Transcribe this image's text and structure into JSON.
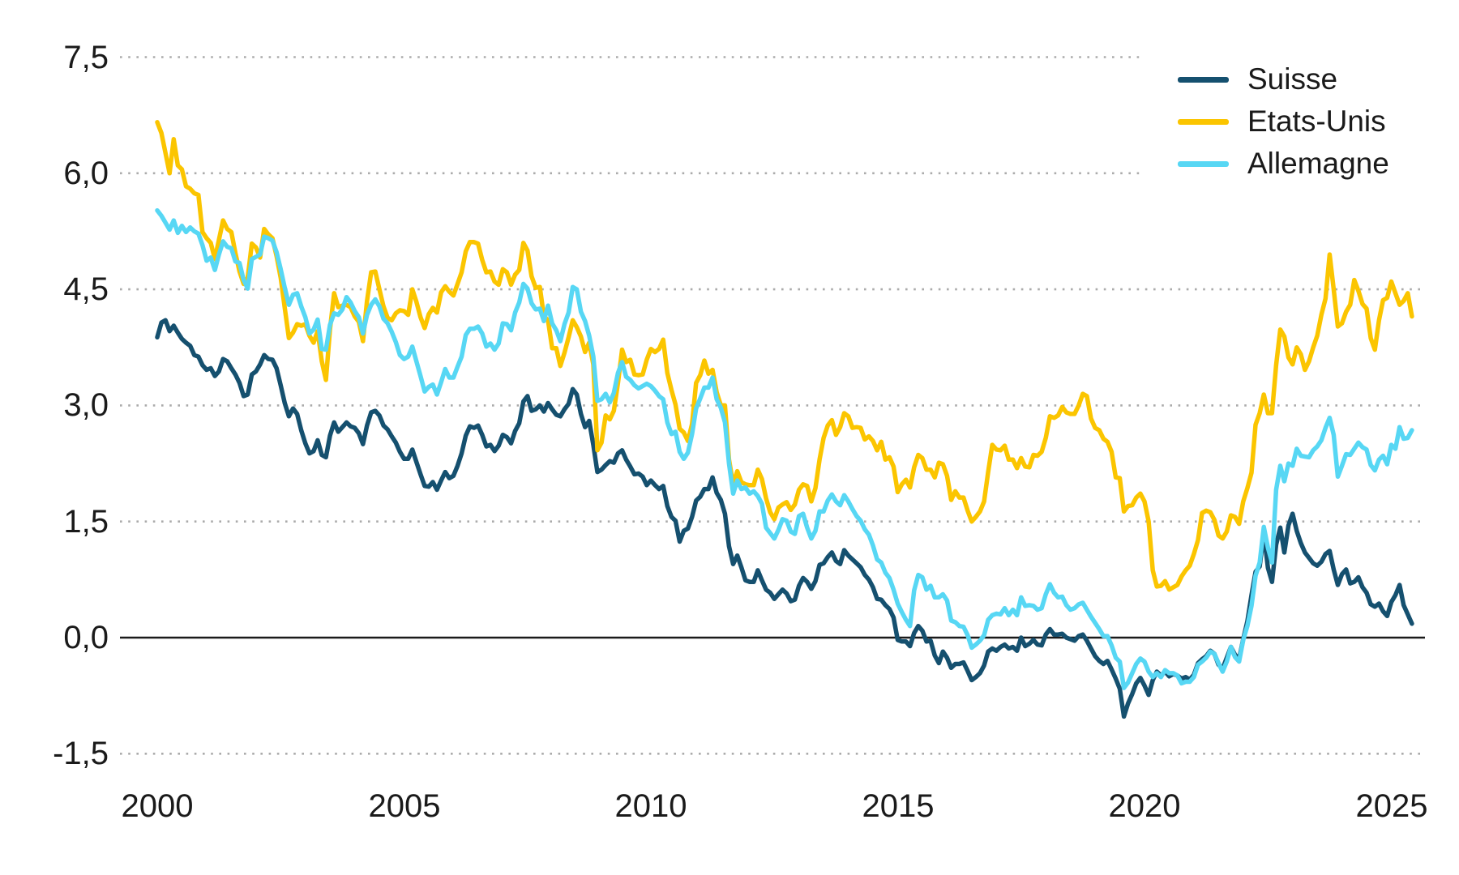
{
  "chart_data": {
    "type": "line",
    "title": "",
    "xlabel": "",
    "ylabel": "",
    "x_start_year": 2000,
    "x_interval": "monthly",
    "x_end": "2025-06",
    "x_tick_years": [
      "2000",
      "2005",
      "2010",
      "2015",
      "2020",
      "2025"
    ],
    "y_ticks": [
      {
        "value": 7.5,
        "label": "7,5"
      },
      {
        "value": 6.0,
        "label": "6,0"
      },
      {
        "value": 4.5,
        "label": "4,5"
      },
      {
        "value": 3.0,
        "label": "3,0"
      },
      {
        "value": 1.5,
        "label": "1,5"
      },
      {
        "value": 0.0,
        "label": "0,0"
      },
      {
        "value": -1.5,
        "label": "-1,5"
      }
    ],
    "ylim": [
      -1.5,
      7.5
    ],
    "grid": "dotted-horizontal",
    "zero_line": true,
    "legend_position": "top-right",
    "colors": {
      "grid_dot": "#ababab",
      "zero_line": "#1a1a1a",
      "text": "#1a1a1a",
      "background": "#ffffff"
    },
    "series": [
      {
        "name": "Suisse",
        "color": "#15506F",
        "values": [
          3.88,
          4.07,
          4.1,
          3.96,
          4.03,
          3.94,
          3.86,
          3.81,
          3.77,
          3.65,
          3.63,
          3.52,
          3.46,
          3.48,
          3.38,
          3.44,
          3.6,
          3.57,
          3.48,
          3.4,
          3.29,
          3.12,
          3.14,
          3.4,
          3.44,
          3.53,
          3.65,
          3.6,
          3.59,
          3.48,
          3.26,
          3.03,
          2.86,
          2.96,
          2.89,
          2.68,
          2.51,
          2.38,
          2.41,
          2.55,
          2.36,
          2.33,
          2.61,
          2.78,
          2.66,
          2.72,
          2.78,
          2.73,
          2.71,
          2.64,
          2.5,
          2.74,
          2.91,
          2.93,
          2.87,
          2.74,
          2.69,
          2.6,
          2.52,
          2.4,
          2.31,
          2.31,
          2.43,
          2.27,
          2.11,
          1.96,
          1.95,
          2.01,
          1.91,
          2.03,
          2.14,
          2.06,
          2.09,
          2.22,
          2.38,
          2.61,
          2.73,
          2.71,
          2.74,
          2.62,
          2.47,
          2.49,
          2.41,
          2.48,
          2.62,
          2.59,
          2.51,
          2.67,
          2.77,
          3.05,
          3.12,
          2.93,
          2.95,
          3.0,
          2.92,
          3.03,
          2.95,
          2.88,
          2.86,
          2.95,
          3.02,
          3.21,
          3.14,
          2.89,
          2.72,
          2.8,
          2.49,
          2.14,
          2.17,
          2.23,
          2.28,
          2.26,
          2.38,
          2.42,
          2.3,
          2.21,
          2.11,
          2.12,
          2.08,
          1.97,
          2.03,
          1.97,
          1.92,
          1.96,
          1.7,
          1.56,
          1.51,
          1.24,
          1.38,
          1.41,
          1.56,
          1.77,
          1.82,
          1.92,
          1.92,
          2.07,
          1.87,
          1.78,
          1.6,
          1.18,
          0.95,
          1.06,
          0.91,
          0.74,
          0.72,
          0.72,
          0.87,
          0.74,
          0.62,
          0.58,
          0.5,
          0.56,
          0.62,
          0.57,
          0.47,
          0.49,
          0.67,
          0.77,
          0.72,
          0.63,
          0.73,
          0.94,
          0.96,
          1.04,
          1.1,
          0.99,
          0.95,
          1.13,
          1.06,
          1.01,
          0.96,
          0.91,
          0.81,
          0.75,
          0.65,
          0.5,
          0.49,
          0.42,
          0.37,
          0.26,
          -0.03,
          -0.05,
          -0.05,
          -0.11,
          0.06,
          0.15,
          0.09,
          -0.05,
          -0.04,
          -0.23,
          -0.33,
          -0.18,
          -0.26,
          -0.39,
          -0.34,
          -0.34,
          -0.32,
          -0.43,
          -0.55,
          -0.51,
          -0.46,
          -0.36,
          -0.18,
          -0.14,
          -0.17,
          -0.12,
          -0.09,
          -0.14,
          -0.12,
          -0.17,
          0.0,
          -0.11,
          -0.08,
          -0.03,
          -0.09,
          -0.1,
          0.04,
          0.11,
          0.04,
          0.04,
          0.05,
          0.0,
          -0.02,
          -0.04,
          0.02,
          0.04,
          -0.04,
          -0.14,
          -0.24,
          -0.3,
          -0.34,
          -0.3,
          -0.41,
          -0.53,
          -0.66,
          -1.02,
          -0.85,
          -0.73,
          -0.59,
          -0.52,
          -0.62,
          -0.74,
          -0.55,
          -0.44,
          -0.49,
          -0.44,
          -0.5,
          -0.47,
          -0.49,
          -0.53,
          -0.51,
          -0.54,
          -0.48,
          -0.33,
          -0.28,
          -0.24,
          -0.17,
          -0.21,
          -0.35,
          -0.4,
          -0.26,
          -0.12,
          -0.22,
          -0.28,
          -0.02,
          0.21,
          0.55,
          0.85,
          0.92,
          1.35,
          0.9,
          0.72,
          1.2,
          1.42,
          1.1,
          1.45,
          1.6,
          1.38,
          1.22,
          1.1,
          1.03,
          0.96,
          0.93,
          0.98,
          1.08,
          1.12,
          0.88,
          0.68,
          0.82,
          0.88,
          0.7,
          0.72,
          0.78,
          0.65,
          0.58,
          0.43,
          0.4,
          0.44,
          0.34,
          0.28,
          0.46,
          0.55,
          0.68,
          0.42,
          0.3,
          0.18
        ]
      },
      {
        "name": "Etats-Unis",
        "color": "#FBC500",
        "values": [
          6.66,
          6.52,
          6.26,
          6.0,
          6.44,
          6.1,
          6.05,
          5.83,
          5.8,
          5.74,
          5.72,
          5.24,
          5.16,
          5.1,
          4.89,
          5.14,
          5.39,
          5.28,
          5.24,
          4.97,
          4.73,
          4.57,
          4.65,
          5.09,
          5.04,
          4.91,
          5.28,
          5.21,
          5.16,
          4.93,
          4.65,
          4.26,
          3.87,
          3.94,
          4.05,
          4.03,
          4.05,
          3.9,
          3.81,
          3.96,
          3.57,
          3.33,
          3.98,
          4.45,
          4.27,
          4.29,
          4.3,
          4.27,
          4.15,
          4.08,
          3.83,
          4.35,
          4.72,
          4.73,
          4.5,
          4.28,
          4.13,
          4.1,
          4.19,
          4.23,
          4.22,
          4.17,
          4.5,
          4.34,
          4.14,
          4.0,
          4.18,
          4.26,
          4.2,
          4.46,
          4.54,
          4.47,
          4.42,
          4.57,
          4.72,
          4.99,
          5.11,
          5.11,
          5.09,
          4.88,
          4.72,
          4.73,
          4.6,
          4.56,
          4.76,
          4.72,
          4.56,
          4.69,
          4.75,
          5.1,
          5.0,
          4.67,
          4.52,
          4.53,
          4.15,
          4.1,
          3.74,
          3.74,
          3.51,
          3.68,
          3.88,
          4.1,
          4.01,
          3.89,
          3.69,
          3.81,
          3.53,
          2.42,
          2.52,
          2.87,
          2.82,
          2.93,
          3.29,
          3.72,
          3.56,
          3.59,
          3.4,
          3.39,
          3.4,
          3.59,
          3.73,
          3.69,
          3.73,
          3.85,
          3.42,
          3.2,
          3.01,
          2.7,
          2.65,
          2.54,
          2.76,
          3.29,
          3.39,
          3.58,
          3.41,
          3.46,
          3.17,
          3.0,
          3.0,
          2.3,
          1.98,
          2.15,
          2.01,
          1.98,
          1.97,
          1.97,
          2.17,
          2.05,
          1.8,
          1.62,
          1.53,
          1.68,
          1.72,
          1.75,
          1.65,
          1.72,
          1.91,
          1.98,
          1.96,
          1.76,
          1.93,
          2.3,
          2.58,
          2.74,
          2.81,
          2.62,
          2.72,
          2.9,
          2.86,
          2.71,
          2.72,
          2.71,
          2.56,
          2.6,
          2.54,
          2.42,
          2.53,
          2.3,
          2.33,
          2.21,
          1.88,
          1.98,
          2.04,
          1.94,
          2.2,
          2.36,
          2.32,
          2.17,
          2.17,
          2.07,
          2.26,
          2.24,
          2.09,
          1.78,
          1.89,
          1.81,
          1.81,
          1.64,
          1.5,
          1.56,
          1.63,
          1.76,
          2.14,
          2.49,
          2.43,
          2.42,
          2.48,
          2.3,
          2.3,
          2.19,
          2.32,
          2.21,
          2.2,
          2.36,
          2.35,
          2.4,
          2.58,
          2.86,
          2.84,
          2.87,
          2.98,
          2.91,
          2.89,
          2.89,
          3.0,
          3.15,
          3.12,
          2.83,
          2.71,
          2.68,
          2.57,
          2.53,
          2.4,
          2.07,
          2.06,
          1.63,
          1.7,
          1.71,
          1.81,
          1.86,
          1.76,
          1.5,
          0.87,
          0.66,
          0.67,
          0.73,
          0.62,
          0.65,
          0.68,
          0.79,
          0.87,
          0.93,
          1.08,
          1.26,
          1.61,
          1.64,
          1.62,
          1.52,
          1.32,
          1.28,
          1.37,
          1.58,
          1.56,
          1.47,
          1.76,
          1.93,
          2.13,
          2.75,
          2.9,
          3.14,
          2.9,
          2.9,
          3.52,
          3.98,
          3.89,
          3.62,
          3.53,
          3.75,
          3.66,
          3.46,
          3.57,
          3.75,
          3.9,
          4.17,
          4.38,
          4.95,
          4.5,
          4.02,
          4.06,
          4.21,
          4.3,
          4.62,
          4.48,
          4.31,
          4.25,
          3.87,
          3.72,
          4.1,
          4.36,
          4.39,
          4.6,
          4.45,
          4.3,
          4.35,
          4.45,
          4.15
        ]
      },
      {
        "name": "Allemagne",
        "color": "#57D7F4",
        "values": [
          5.52,
          5.45,
          5.36,
          5.27,
          5.39,
          5.23,
          5.32,
          5.24,
          5.3,
          5.25,
          5.22,
          5.07,
          4.87,
          4.91,
          4.75,
          4.95,
          5.12,
          5.05,
          5.03,
          4.86,
          4.84,
          4.62,
          4.51,
          4.89,
          4.92,
          4.95,
          5.18,
          5.16,
          5.13,
          4.98,
          4.76,
          4.52,
          4.3,
          4.43,
          4.45,
          4.28,
          4.14,
          3.93,
          3.98,
          4.11,
          3.73,
          3.72,
          4.04,
          4.19,
          4.17,
          4.24,
          4.4,
          4.33,
          4.22,
          4.14,
          3.93,
          4.17,
          4.3,
          4.37,
          4.28,
          4.12,
          4.06,
          3.95,
          3.82,
          3.65,
          3.6,
          3.63,
          3.76,
          3.57,
          3.38,
          3.18,
          3.24,
          3.27,
          3.14,
          3.3,
          3.47,
          3.36,
          3.36,
          3.5,
          3.63,
          3.91,
          3.99,
          3.99,
          4.02,
          3.93,
          3.76,
          3.8,
          3.72,
          3.8,
          4.06,
          4.05,
          3.97,
          4.2,
          4.33,
          4.57,
          4.51,
          4.32,
          4.24,
          4.25,
          4.09,
          4.29,
          4.06,
          3.97,
          3.83,
          4.05,
          4.2,
          4.53,
          4.5,
          4.21,
          4.09,
          3.9,
          3.63,
          3.06,
          3.08,
          3.15,
          3.04,
          3.16,
          3.42,
          3.56,
          3.37,
          3.33,
          3.26,
          3.22,
          3.25,
          3.28,
          3.25,
          3.19,
          3.12,
          3.08,
          2.78,
          2.63,
          2.66,
          2.4,
          2.31,
          2.39,
          2.63,
          2.96,
          3.09,
          3.23,
          3.23,
          3.36,
          3.08,
          2.97,
          2.78,
          2.25,
          1.86,
          2.03,
          1.92,
          1.94,
          1.86,
          1.89,
          1.83,
          1.73,
          1.42,
          1.35,
          1.28,
          1.39,
          1.53,
          1.51,
          1.37,
          1.34,
          1.57,
          1.6,
          1.42,
          1.28,
          1.38,
          1.63,
          1.63,
          1.77,
          1.85,
          1.76,
          1.71,
          1.84,
          1.76,
          1.66,
          1.57,
          1.51,
          1.4,
          1.33,
          1.19,
          1.01,
          0.97,
          0.84,
          0.77,
          0.62,
          0.44,
          0.33,
          0.23,
          0.15,
          0.61,
          0.81,
          0.78,
          0.62,
          0.67,
          0.52,
          0.52,
          0.56,
          0.48,
          0.22,
          0.2,
          0.15,
          0.14,
          0.03,
          -0.13,
          -0.09,
          -0.04,
          0.03,
          0.23,
          0.29,
          0.31,
          0.3,
          0.38,
          0.29,
          0.36,
          0.29,
          0.52,
          0.41,
          0.42,
          0.41,
          0.36,
          0.38,
          0.56,
          0.69,
          0.58,
          0.52,
          0.53,
          0.42,
          0.36,
          0.38,
          0.43,
          0.45,
          0.36,
          0.27,
          0.19,
          0.11,
          0.02,
          0.02,
          -0.1,
          -0.26,
          -0.31,
          -0.65,
          -0.58,
          -0.46,
          -0.34,
          -0.27,
          -0.31,
          -0.44,
          -0.51,
          -0.46,
          -0.51,
          -0.42,
          -0.46,
          -0.46,
          -0.49,
          -0.59,
          -0.57,
          -0.57,
          -0.51,
          -0.35,
          -0.31,
          -0.26,
          -0.18,
          -0.21,
          -0.33,
          -0.44,
          -0.31,
          -0.12,
          -0.25,
          -0.31,
          -0.03,
          0.15,
          0.41,
          0.8,
          0.97,
          1.43,
          1.16,
          0.97,
          1.91,
          2.22,
          2.02,
          2.25,
          2.22,
          2.44,
          2.35,
          2.34,
          2.33,
          2.42,
          2.47,
          2.55,
          2.71,
          2.84,
          2.62,
          2.08,
          2.22,
          2.37,
          2.36,
          2.44,
          2.52,
          2.46,
          2.43,
          2.23,
          2.16,
          2.3,
          2.35,
          2.24,
          2.49,
          2.44,
          2.72,
          2.57,
          2.58,
          2.68
        ]
      }
    ]
  }
}
